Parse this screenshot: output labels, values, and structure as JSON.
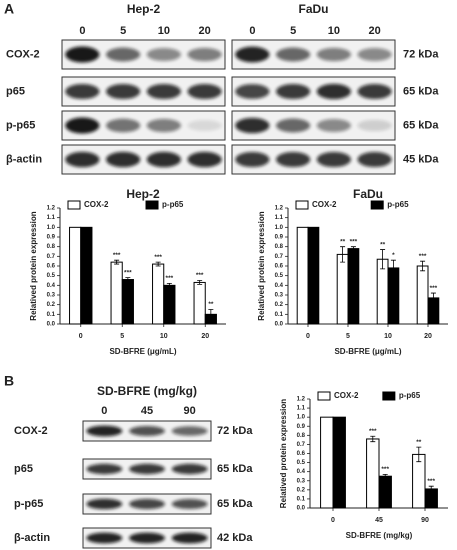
{
  "panel_a_label": "A",
  "panel_b_label": "B",
  "blots_a": {
    "cell_lines": [
      "Hep-2",
      "FaDu"
    ],
    "doses": [
      "0",
      "5",
      "10",
      "20"
    ],
    "rows": [
      "COX-2",
      "p65",
      "p-p65",
      "β-actin"
    ],
    "sizes": [
      "72 kDa",
      "65 kDa",
      "65 kDa",
      "45 kDa"
    ]
  },
  "blots_b": {
    "header": "SD-BFRE (mg/kg)",
    "doses": [
      "0",
      "45",
      "90"
    ],
    "rows": [
      "COX-2",
      "p65",
      "p-p65",
      "β-actin"
    ],
    "sizes": [
      "72 kDa",
      "65 kDa",
      "65 kDa",
      "42 kDa"
    ]
  },
  "chart_data": [
    {
      "type": "bar",
      "title": "Hep-2",
      "xlabel": "SD-BFRE (μg/mL)",
      "ylabel": "Relatived protein expression",
      "categories": [
        "0",
        "5",
        "10",
        "20"
      ],
      "series": [
        {
          "name": "COX-2",
          "color": "#ffffff",
          "values": [
            1.0,
            0.64,
            0.62,
            0.43
          ],
          "errors": [
            0,
            0.02,
            0.02,
            0.02
          ],
          "significance": [
            null,
            "***",
            "***",
            "***"
          ]
        },
        {
          "name": "p-p65",
          "color": "#000000",
          "values": [
            1.0,
            0.46,
            0.4,
            0.1
          ],
          "errors": [
            0,
            0.02,
            0.02,
            0.05
          ],
          "significance": [
            null,
            "***",
            "***",
            "**"
          ]
        }
      ],
      "ylim": [
        0,
        1.2
      ],
      "yticks": [
        {
          "value": 0,
          "label": "0.0"
        },
        0.1,
        0.2,
        0.3,
        0.4,
        0.5,
        0.6,
        0.7,
        0.8,
        0.9,
        {
          "value": 1,
          "label": "1.0"
        },
        1.1,
        1.2
      ]
    },
    {
      "type": "bar",
      "title": "FaDu",
      "xlabel": "SD-BFRE (μg/mL)",
      "ylabel": "Relatived protein expression",
      "categories": [
        "0",
        "5",
        "10",
        "20"
      ],
      "series": [
        {
          "name": "COX-2",
          "color": "#ffffff",
          "values": [
            1.0,
            0.72,
            0.67,
            0.6
          ],
          "errors": [
            0,
            0.08,
            0.1,
            0.05
          ],
          "significance": [
            null,
            "**",
            "**",
            "***"
          ]
        },
        {
          "name": "p-p65",
          "color": "#000000",
          "values": [
            1.0,
            0.78,
            0.58,
            0.27
          ],
          "errors": [
            0,
            0.02,
            0.08,
            0.05
          ],
          "significance": [
            null,
            "***",
            "*",
            "***"
          ]
        }
      ],
      "ylim": [
        0,
        1.2
      ],
      "yticks": [
        {
          "value": 0,
          "label": "0.0"
        },
        0.1,
        0.2,
        0.3,
        0.4,
        0.5,
        0.6,
        0.7,
        0.8,
        0.9,
        {
          "value": 1,
          "label": "1.0"
        },
        1.1,
        1.2
      ]
    },
    {
      "type": "bar",
      "xlabel": "SD-BFRE (mg/kg)",
      "ylabel": "Relatived protein expression",
      "categories": [
        "0",
        "45",
        "90"
      ],
      "series": [
        {
          "name": "COX-2",
          "color": "#ffffff",
          "values": [
            1.0,
            0.76,
            0.59
          ],
          "errors": [
            0,
            0.03,
            0.08
          ],
          "significance": [
            null,
            "***",
            "**"
          ]
        },
        {
          "name": "p-p65",
          "color": "#000000",
          "values": [
            1.0,
            0.35,
            0.21
          ],
          "errors": [
            0,
            0.02,
            0.03
          ],
          "significance": [
            null,
            "***",
            "***"
          ]
        }
      ],
      "ylim": [
        0,
        1.2
      ],
      "yticks": [
        {
          "value": 0,
          "label": "0.0"
        },
        0.1,
        0.2,
        0.3,
        0.4,
        0.5,
        0.6,
        0.7,
        0.8,
        0.9,
        {
          "value": 1,
          "label": "1.0"
        },
        1.1,
        1.2
      ]
    }
  ]
}
